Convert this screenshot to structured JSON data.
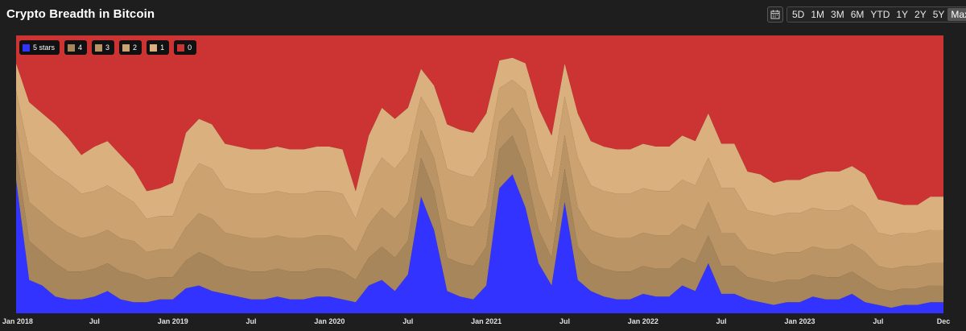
{
  "header": {
    "title": "Crypto Breadth in Bitcoin",
    "ranges": [
      "5D",
      "1M",
      "3M",
      "6M",
      "YTD",
      "1Y",
      "2Y",
      "5Y",
      "Max"
    ],
    "active_range": "Max"
  },
  "chart_data": {
    "type": "area",
    "stacked": true,
    "title": "Crypto Breadth in Bitcoin",
    "x_start": "2018-01",
    "x_end": "2023-12",
    "ylim": [
      0,
      100
    ],
    "grid": false,
    "legend_placement": "top-left",
    "colors": {
      "5 stars": "#3333ff",
      "4": "#a8865c",
      "3": "#bb9466",
      "2": "#cca370",
      "1": "#d9b07e",
      "0": "#cc3333"
    },
    "x": [
      "2018-01",
      "2018-02",
      "2018-03",
      "2018-04",
      "2018-05",
      "2018-06",
      "2018-07",
      "2018-08",
      "2018-09",
      "2018-10",
      "2018-11",
      "2018-12",
      "2019-01",
      "2019-02",
      "2019-03",
      "2019-04",
      "2019-05",
      "2019-06",
      "2019-07",
      "2019-08",
      "2019-09",
      "2019-10",
      "2019-11",
      "2019-12",
      "2020-01",
      "2020-02",
      "2020-03",
      "2020-04",
      "2020-05",
      "2020-06",
      "2020-07",
      "2020-08",
      "2020-09",
      "2020-10",
      "2020-11",
      "2020-12",
      "2021-01",
      "2021-02",
      "2021-03",
      "2021-04",
      "2021-05",
      "2021-06",
      "2021-07",
      "2021-08",
      "2021-09",
      "2021-10",
      "2021-11",
      "2021-12",
      "2022-01",
      "2022-02",
      "2022-03",
      "2022-04",
      "2022-05",
      "2022-06",
      "2022-07",
      "2022-08",
      "2022-09",
      "2022-10",
      "2022-11",
      "2022-12",
      "2023-01",
      "2023-02",
      "2023-03",
      "2023-04",
      "2023-05",
      "2023-06",
      "2023-07",
      "2023-08",
      "2023-09",
      "2023-10",
      "2023-11",
      "2023-12"
    ],
    "series": [
      {
        "name": "5 stars",
        "values": [
          48,
          12,
          10,
          6,
          5,
          5,
          6,
          8,
          5,
          4,
          4,
          5,
          5,
          9,
          10,
          8,
          7,
          6,
          5,
          5,
          6,
          5,
          5,
          6,
          6,
          5,
          4,
          10,
          12,
          8,
          14,
          42,
          30,
          8,
          6,
          5,
          10,
          45,
          50,
          38,
          18,
          10,
          40,
          12,
          8,
          6,
          5,
          5,
          7,
          6,
          6,
          10,
          8,
          18,
          7,
          7,
          5,
          4,
          3,
          4,
          4,
          6,
          5,
          5,
          7,
          4,
          3,
          2,
          3,
          3,
          4,
          4
        ]
      },
      {
        "name": "4",
        "values": [
          10,
          14,
          12,
          12,
          10,
          10,
          10,
          10,
          10,
          10,
          8,
          8,
          8,
          10,
          12,
          12,
          10,
          10,
          10,
          10,
          10,
          10,
          10,
          10,
          10,
          10,
          8,
          10,
          12,
          12,
          12,
          14,
          14,
          12,
          12,
          12,
          14,
          14,
          14,
          14,
          12,
          10,
          12,
          12,
          10,
          10,
          10,
          10,
          10,
          10,
          10,
          10,
          10,
          10,
          10,
          10,
          8,
          8,
          8,
          8,
          8,
          8,
          8,
          8,
          8,
          8,
          6,
          6,
          6,
          6,
          6,
          6
        ]
      },
      {
        "name": "3",
        "values": [
          10,
          14,
          14,
          14,
          14,
          12,
          12,
          12,
          12,
          12,
          10,
          10,
          10,
          12,
          14,
          14,
          12,
          12,
          12,
          12,
          12,
          12,
          12,
          12,
          12,
          12,
          10,
          12,
          14,
          14,
          14,
          10,
          12,
          14,
          14,
          14,
          14,
          10,
          10,
          14,
          14,
          12,
          12,
          14,
          12,
          12,
          12,
          12,
          12,
          12,
          12,
          12,
          12,
          12,
          12,
          12,
          10,
          10,
          10,
          10,
          10,
          10,
          10,
          10,
          10,
          10,
          8,
          8,
          8,
          8,
          8,
          8
        ]
      },
      {
        "name": "2",
        "values": [
          12,
          18,
          18,
          18,
          18,
          16,
          16,
          16,
          16,
          14,
          12,
          12,
          12,
          16,
          18,
          18,
          16,
          16,
          16,
          16,
          16,
          16,
          16,
          16,
          16,
          16,
          12,
          16,
          18,
          18,
          18,
          12,
          14,
          18,
          18,
          18,
          18,
          12,
          10,
          14,
          16,
          16,
          14,
          18,
          16,
          16,
          16,
          16,
          16,
          16,
          16,
          16,
          16,
          16,
          16,
          16,
          14,
          14,
          14,
          14,
          14,
          14,
          14,
          14,
          14,
          14,
          12,
          12,
          12,
          12,
          12,
          12
        ]
      },
      {
        "name": "1",
        "values": [
          10,
          18,
          18,
          18,
          16,
          14,
          16,
          16,
          14,
          12,
          10,
          10,
          12,
          18,
          16,
          16,
          16,
          16,
          16,
          16,
          16,
          16,
          16,
          16,
          16,
          16,
          10,
          16,
          18,
          18,
          16,
          10,
          12,
          16,
          16,
          16,
          16,
          10,
          8,
          10,
          14,
          16,
          12,
          16,
          16,
          16,
          16,
          16,
          16,
          16,
          16,
          16,
          16,
          16,
          16,
          16,
          14,
          14,
          12,
          12,
          12,
          12,
          14,
          14,
          14,
          14,
          12,
          12,
          10,
          10,
          12,
          12
        ]
      },
      {
        "name": "0",
        "values": [
          10,
          24,
          28,
          32,
          37,
          43,
          40,
          38,
          43,
          48,
          56,
          55,
          53,
          35,
          30,
          32,
          39,
          40,
          41,
          41,
          40,
          41,
          41,
          40,
          40,
          41,
          56,
          36,
          26,
          30,
          26,
          12,
          18,
          32,
          34,
          35,
          28,
          9,
          8,
          10,
          26,
          36,
          10,
          28,
          38,
          40,
          41,
          41,
          39,
          40,
          40,
          36,
          38,
          28,
          39,
          39,
          49,
          50,
          53,
          52,
          52,
          50,
          49,
          49,
          47,
          50,
          59,
          60,
          61,
          61,
          58,
          58
        ]
      }
    ],
    "x_tick_labels": [
      "Jan 2018",
      "Jul",
      "Jan 2019",
      "Jul",
      "Jan 2020",
      "Jul",
      "Jan 2021",
      "Jul",
      "Jan 2022",
      "Jul",
      "Jan 2023",
      "Jul",
      "Dec"
    ]
  }
}
